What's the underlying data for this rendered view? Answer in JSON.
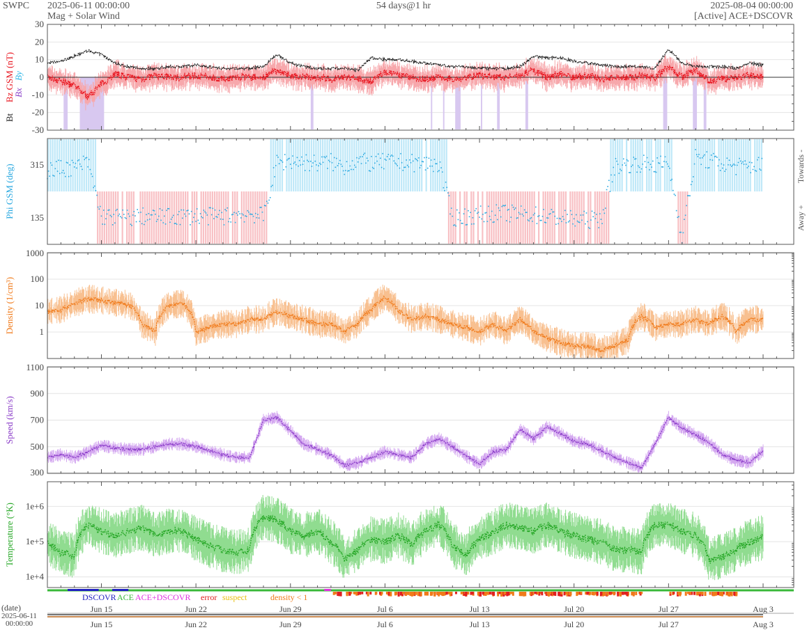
{
  "header": {
    "brand": "SWPC",
    "start": "2025-06-11 00:00:00",
    "subtitle": "Mag + Solar Wind",
    "span": "54 days@1 hr",
    "end": "2025-08-04 00:00:00",
    "source": "[Active] ACE+DSCOVR"
  },
  "colors": {
    "bt": "#222222",
    "bz": "#e8141e",
    "bz_fill": "#f7a8ac",
    "bx": "#8a40c8",
    "by": "#30b8e8",
    "phi": "#29a8e0",
    "toward_fill": "#bfe8f8",
    "away_fill": "#f8c0c4",
    "density": "#f07a1a",
    "density_fill": "#f8c090",
    "speed": "#8a3cc8",
    "speed_fill": "#d4a8f0",
    "temp": "#28a828",
    "temp_fill": "#90dc90",
    "dscovr": "#2020c0",
    "ace": "#38b838",
    "acedscovr": "#e030e0",
    "error": "#e02020",
    "suspect": "#e8c010",
    "density_lt1": "#f07a1a"
  },
  "chart_data": [
    {
      "type": "line",
      "title": "",
      "ylabel_parts": [
        "Bt",
        "Bz GSM (nT)",
        "Bx",
        "By"
      ],
      "ylim": [
        -30,
        30
      ],
      "yticks": [
        "30",
        "20",
        "10",
        "0",
        "-10",
        "-20",
        "-30"
      ],
      "xlim_days": [
        0,
        54
      ],
      "series": [
        {
          "name": "Bt",
          "x": [
            0,
            1,
            2,
            3,
            4,
            5,
            6,
            7,
            8,
            9,
            10,
            11,
            12,
            13,
            14,
            15,
            16,
            17,
            18,
            19,
            20,
            21,
            22,
            23,
            24,
            25,
            26,
            27,
            28,
            29,
            30,
            31,
            32,
            33,
            34,
            35,
            36,
            37,
            38,
            39,
            40,
            41,
            42,
            43,
            44,
            45,
            46,
            47,
            48,
            49,
            50,
            51,
            52,
            53
          ],
          "values": [
            8,
            9,
            12,
            15,
            13,
            8,
            6,
            5,
            5,
            6,
            6,
            7,
            6,
            5,
            5,
            5,
            6,
            13,
            8,
            6,
            5,
            5,
            5,
            4,
            11,
            10,
            10,
            9,
            8,
            7,
            6,
            6,
            5,
            5,
            5,
            6,
            12,
            11,
            11,
            9,
            8,
            7,
            6,
            6,
            6,
            5,
            16,
            8,
            6,
            6,
            6,
            5,
            8,
            7
          ]
        },
        {
          "name": "Bz GSM",
          "x": [
            0,
            1,
            2,
            3,
            4,
            5,
            6,
            7,
            8,
            9,
            10,
            11,
            12,
            13,
            14,
            15,
            16,
            17,
            18,
            19,
            20,
            21,
            22,
            23,
            24,
            25,
            26,
            27,
            28,
            29,
            30,
            31,
            32,
            33,
            34,
            35,
            36,
            37,
            38,
            39,
            40,
            41,
            42,
            43,
            44,
            45,
            46,
            47,
            48,
            49,
            50,
            51,
            52,
            53
          ],
          "values": [
            0,
            -2,
            -5,
            -11,
            -4,
            2,
            0,
            -1,
            1,
            0,
            0,
            1,
            0,
            -1,
            0,
            0,
            0,
            4,
            1,
            0,
            0,
            -1,
            0,
            -1,
            -2,
            3,
            1,
            0,
            -1,
            0,
            -1,
            0,
            1,
            0,
            0,
            1,
            4,
            0,
            2,
            0,
            1,
            -1,
            0,
            0,
            1,
            0,
            6,
            0,
            4,
            -2,
            -1,
            0,
            1,
            0
          ]
        }
      ]
    },
    {
      "type": "scatter",
      "title": "",
      "ylabel": "Phi GSM (deg)",
      "ylim": [
        45,
        405
      ],
      "yticks": [
        "315",
        "135"
      ],
      "right_labels": [
        "Towards -",
        "Away +"
      ],
      "series": [
        {
          "name": "Phi",
          "x": [
            0,
            1,
            2,
            3,
            4,
            5,
            6,
            7,
            8,
            9,
            10,
            11,
            12,
            13,
            14,
            15,
            16,
            17,
            18,
            19,
            20,
            21,
            22,
            23,
            24,
            25,
            26,
            27,
            28,
            29,
            30,
            31,
            32,
            33,
            34,
            35,
            36,
            37,
            38,
            39,
            40,
            41,
            42,
            43,
            44,
            45,
            46,
            47,
            48,
            49,
            50,
            51,
            52,
            53
          ],
          "values": [
            295,
            305,
            305,
            325,
            140,
            138,
            135,
            140,
            138,
            138,
            140,
            142,
            140,
            140,
            145,
            150,
            140,
            322,
            330,
            325,
            320,
            325,
            310,
            330,
            320,
            325,
            325,
            322,
            320,
            318,
            135,
            140,
            145,
            150,
            150,
            148,
            145,
            140,
            135,
            130,
            128,
            130,
            310,
            318,
            320,
            315,
            320,
            75,
            340,
            330,
            318,
            310,
            312,
            316
          ]
        }
      ]
    },
    {
      "type": "line",
      "title": "",
      "ylabel": "Density (1/cm³)",
      "scale": "log",
      "ylim": [
        0.1,
        1000
      ],
      "yticks": [
        "1000",
        "100",
        "10",
        "1"
      ],
      "series": [
        {
          "name": "Density",
          "x": [
            0,
            1,
            2,
            3,
            4,
            5,
            6,
            7,
            8,
            9,
            10,
            11,
            12,
            13,
            14,
            15,
            16,
            17,
            18,
            19,
            20,
            21,
            22,
            23,
            24,
            25,
            26,
            27,
            28,
            29,
            30,
            31,
            32,
            33,
            34,
            35,
            36,
            37,
            38,
            39,
            40,
            41,
            42,
            43,
            44,
            45,
            46,
            47,
            48,
            49,
            50,
            51,
            52,
            53
          ],
          "values": [
            6,
            7,
            12,
            18,
            16,
            13,
            11,
            2,
            1,
            10,
            12,
            1,
            1.5,
            2,
            2,
            3,
            3,
            6,
            4,
            3,
            2,
            2,
            1,
            2,
            7,
            20,
            6,
            3,
            4,
            3,
            2,
            1.5,
            1,
            2,
            1,
            3,
            1,
            0.6,
            0.4,
            0.3,
            0.3,
            0.2,
            0.3,
            0.5,
            4,
            1.5,
            2,
            2,
            3,
            2,
            4,
            1,
            3,
            3
          ]
        }
      ]
    },
    {
      "type": "line",
      "title": "",
      "ylabel": "Speed (km/s)",
      "ylim": [
        300,
        1100
      ],
      "yticks": [
        "1100",
        "900",
        "700",
        "500",
        "300"
      ],
      "series": [
        {
          "name": "Speed",
          "x": [
            0,
            1,
            2,
            3,
            4,
            5,
            6,
            7,
            8,
            9,
            10,
            11,
            12,
            13,
            14,
            15,
            16,
            17,
            18,
            19,
            20,
            21,
            22,
            23,
            24,
            25,
            26,
            27,
            28,
            29,
            30,
            31,
            32,
            33,
            34,
            35,
            36,
            37,
            38,
            39,
            40,
            41,
            42,
            43,
            44,
            45,
            46,
            47,
            48,
            49,
            50,
            51,
            52,
            53
          ],
          "values": [
            420,
            440,
            420,
            460,
            510,
            490,
            480,
            480,
            500,
            520,
            520,
            500,
            470,
            440,
            420,
            420,
            700,
            720,
            620,
            520,
            480,
            440,
            360,
            380,
            420,
            460,
            440,
            420,
            520,
            560,
            500,
            430,
            370,
            460,
            480,
            630,
            560,
            650,
            600,
            540,
            520,
            470,
            420,
            380,
            340,
            520,
            720,
            640,
            590,
            530,
            440,
            400,
            380,
            470
          ]
        }
      ]
    },
    {
      "type": "line",
      "title": "",
      "ylabel": "Temperature (°K)",
      "scale": "log",
      "ylim": [
        5000,
        5000000
      ],
      "yticks": [
        "1e+6",
        "1e+5",
        "1e+4"
      ],
      "series": [
        {
          "name": "Temperature",
          "x": [
            0,
            1,
            2,
            3,
            4,
            5,
            6,
            7,
            8,
            9,
            10,
            11,
            12,
            13,
            14,
            15,
            16,
            17,
            18,
            19,
            20,
            21,
            22,
            23,
            24,
            25,
            26,
            27,
            28,
            29,
            30,
            31,
            32,
            33,
            34,
            35,
            36,
            37,
            38,
            39,
            40,
            41,
            42,
            43,
            44,
            45,
            46,
            47,
            48,
            49,
            50,
            51,
            52,
            53
          ],
          "values": [
            90000,
            50000,
            40000,
            300000,
            200000,
            150000,
            200000,
            250000,
            150000,
            200000,
            200000,
            120000,
            80000,
            60000,
            50000,
            60000,
            500000,
            400000,
            200000,
            150000,
            200000,
            100000,
            30000,
            60000,
            120000,
            100000,
            150000,
            80000,
            200000,
            300000,
            80000,
            40000,
            120000,
            180000,
            300000,
            250000,
            200000,
            300000,
            200000,
            150000,
            120000,
            100000,
            60000,
            60000,
            50000,
            300000,
            300000,
            200000,
            150000,
            30000,
            40000,
            60000,
            100000,
            130000
          ]
        }
      ]
    }
  ],
  "legend": {
    "dscovr": "DSCOVR",
    "ace": "ACE",
    "acedscovr": "ACE+DSCOVR",
    "error": "error",
    "suspect": "suspect",
    "density_lt1": "density < 1"
  },
  "axis": {
    "date_label": "(date)",
    "start_date": "2025-06-11",
    "start_time": "00:00:00",
    "tick_labels": [
      "Jun 15",
      "Jun 22",
      "Jun 29",
      "Jul 6",
      "Jul 13",
      "Jul 20",
      "Jul 27",
      "Aug 3"
    ],
    "tick_days": [
      4,
      11,
      18,
      25,
      32,
      39,
      46,
      53
    ]
  }
}
